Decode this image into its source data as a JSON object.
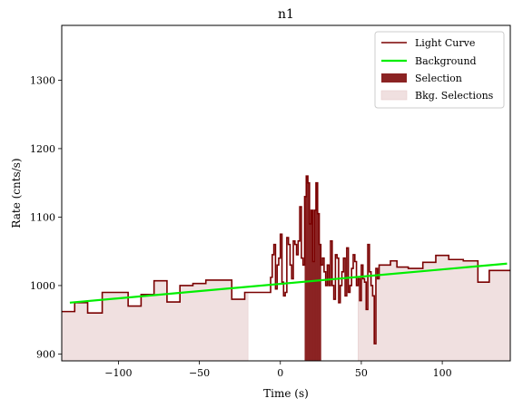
{
  "chart_data": {
    "type": "line",
    "title": "n1",
    "xlabel": "Time (s)",
    "ylabel": "Rate (cnts/s)",
    "xlim": [
      -135,
      142
    ],
    "ylim": [
      890,
      1380
    ],
    "xticks": [
      -100,
      -50,
      0,
      50,
      100
    ],
    "yticks": [
      900,
      1000,
      1100,
      1200,
      1300
    ],
    "xtick_labels": [
      "−100",
      "−50",
      "0",
      "50",
      "100"
    ],
    "ytick_labels": [
      "900",
      "1000",
      "1100",
      "1200",
      "1300"
    ],
    "grid": false,
    "legend_position": "top-right",
    "legend": [
      "Light Curve",
      "Background",
      "Selection",
      "Bkg. Selections"
    ],
    "colors": {
      "light_curve": "#7a0000",
      "background": "#00ee00",
      "selection": "#8b2323",
      "bkg_selection": "#f0e0e0"
    },
    "background_fit": {
      "x": [
        -130,
        140
      ],
      "y": [
        975,
        1032
      ]
    },
    "selection_range": [
      15,
      25
    ],
    "bkg_selection_ranges": [
      [
        -135,
        -20
      ],
      [
        48,
        142
      ]
    ],
    "light_curve": {
      "x": [
        -135,
        -127,
        -127,
        -119,
        -119,
        -110,
        -110,
        -94,
        -94,
        -86,
        -86,
        -78,
        -78,
        -70,
        -70,
        -62,
        -62,
        -54,
        -54,
        -46,
        -46,
        -38,
        -38,
        -30,
        -30,
        -26,
        -26,
        -22,
        -22,
        -18,
        -18,
        -14,
        -14,
        -10,
        -10,
        -6,
        -6,
        -5,
        -5,
        -4,
        -4,
        -3,
        -3,
        -2,
        -2,
        -1,
        -1,
        0,
        0,
        1,
        1,
        2,
        2,
        3,
        3,
        4,
        4,
        5,
        5,
        6,
        6,
        7,
        7,
        8,
        8,
        9,
        9,
        10,
        10,
        11,
        11,
        12,
        12,
        13,
        13,
        14,
        14,
        15,
        15,
        16,
        16,
        17,
        17,
        18,
        18,
        19,
        19,
        20,
        20,
        21,
        21,
        22,
        22,
        23,
        23,
        24,
        24,
        25,
        25,
        26,
        26,
        27,
        27,
        28,
        28,
        29,
        29,
        30,
        30,
        31,
        31,
        32,
        32,
        33,
        33,
        34,
        34,
        35,
        35,
        36,
        36,
        37,
        37,
        38,
        38,
        39,
        39,
        40,
        40,
        41,
        41,
        42,
        42,
        43,
        43,
        44,
        44,
        45,
        45,
        46,
        46,
        47,
        47,
        48,
        48,
        49,
        49,
        50,
        50,
        51,
        51,
        52,
        52,
        53,
        53,
        54,
        54,
        55,
        55,
        56,
        56,
        57,
        57,
        58,
        58,
        59,
        59,
        60,
        60,
        61,
        61,
        62,
        62,
        63,
        63,
        64,
        64,
        65,
        65,
        66,
        66,
        67,
        67,
        68,
        68,
        69,
        69,
        70,
        70,
        71,
        71,
        72,
        72,
        73,
        73,
        74,
        74,
        75,
        75,
        76,
        76,
        77,
        77,
        78,
        78,
        79,
        79,
        80,
        80,
        81,
        81,
        82,
        82,
        83,
        83,
        84,
        84,
        85,
        85,
        86,
        86,
        87,
        87,
        88,
        88,
        89,
        89,
        90,
        90,
        91,
        91,
        92,
        92,
        93,
        93,
        94,
        94,
        95,
        95,
        96,
        96,
        97,
        97,
        98,
        98,
        99,
        99,
        100,
        100,
        101,
        101,
        102,
        102,
        103,
        103,
        104,
        104,
        105,
        105,
        106,
        106,
        107,
        107,
        108,
        108,
        109,
        109,
        110,
        110,
        111,
        111,
        112,
        112,
        113,
        113,
        114,
        114,
        115,
        115,
        116,
        116,
        117,
        117,
        118,
        118,
        119,
        119,
        120,
        120,
        121,
        121,
        122,
        122,
        123,
        123,
        124,
        124,
        125,
        125,
        126,
        126,
        127,
        127,
        128,
        128,
        129,
        129,
        130,
        130,
        131,
        131,
        132,
        132,
        133,
        133,
        134,
        134,
        135,
        135,
        136,
        136,
        137,
        137,
        138,
        138,
        139,
        139,
        140,
        140,
        141,
        141,
        142
      ],
      "y": []
    },
    "light_curve_steps": [
      [
        -135,
        -127,
        962
      ],
      [
        -127,
        -119,
        975
      ],
      [
        -119,
        -110,
        960
      ],
      [
        -110,
        -94,
        990
      ],
      [
        -94,
        -86,
        970
      ],
      [
        -86,
        -78,
        987
      ],
      [
        -78,
        -70,
        1007
      ],
      [
        -70,
        -62,
        976
      ],
      [
        -62,
        -54,
        1000
      ],
      [
        -54,
        -46,
        1003
      ],
      [
        -46,
        -38,
        1008
      ],
      [
        -38,
        -30,
        1008
      ],
      [
        -30,
        -22,
        980
      ],
      [
        -22,
        -14,
        990
      ],
      [
        -14,
        -6,
        990
      ],
      [
        -6,
        -5,
        1012
      ],
      [
        -5,
        -4,
        1045
      ],
      [
        -4,
        -3,
        1060
      ],
      [
        -3,
        -2,
        995
      ],
      [
        -2,
        -1,
        1030
      ],
      [
        -1,
        0,
        1040
      ],
      [
        0,
        1,
        1075
      ],
      [
        1,
        2,
        1005
      ],
      [
        2,
        3,
        985
      ],
      [
        3,
        4,
        990
      ],
      [
        4,
        5,
        1070
      ],
      [
        5,
        6,
        1060
      ],
      [
        6,
        7,
        1030
      ],
      [
        7,
        8,
        1010
      ],
      [
        8,
        9,
        1065
      ],
      [
        9,
        10,
        1060
      ],
      [
        10,
        11,
        1045
      ],
      [
        11,
        12,
        1065
      ],
      [
        12,
        13,
        1115
      ],
      [
        13,
        14,
        1040
      ],
      [
        14,
        15,
        1030
      ],
      [
        15,
        16,
        1130
      ],
      [
        16,
        17,
        1160
      ],
      [
        17,
        18,
        1150
      ],
      [
        18,
        19,
        1090
      ],
      [
        19,
        20,
        1110
      ],
      [
        20,
        21,
        1035
      ],
      [
        21,
        22,
        1110
      ],
      [
        22,
        23,
        1150
      ],
      [
        23,
        24,
        1105
      ],
      [
        24,
        25,
        1060
      ],
      [
        25,
        26,
        1030
      ],
      [
        26,
        27,
        1040
      ],
      [
        27,
        28,
        1020
      ],
      [
        28,
        29,
        1000
      ],
      [
        29,
        30,
        1030
      ],
      [
        30,
        31,
        1000
      ],
      [
        31,
        32,
        1065
      ],
      [
        32,
        33,
        1000
      ],
      [
        33,
        34,
        980
      ],
      [
        34,
        35,
        1045
      ],
      [
        35,
        36,
        1040
      ],
      [
        36,
        37,
        975
      ],
      [
        37,
        38,
        1000
      ],
      [
        38,
        39,
        1020
      ],
      [
        39,
        40,
        1040
      ],
      [
        40,
        41,
        985
      ],
      [
        41,
        42,
        1055
      ],
      [
        42,
        43,
        990
      ],
      [
        43,
        44,
        1000
      ],
      [
        44,
        45,
        1025
      ],
      [
        45,
        46,
        1045
      ],
      [
        46,
        47,
        1035
      ],
      [
        47,
        48,
        1000
      ],
      [
        48,
        49,
        1010
      ],
      [
        49,
        50,
        978
      ],
      [
        50,
        51,
        1030
      ],
      [
        51,
        52,
        1010
      ],
      [
        52,
        53,
        1005
      ],
      [
        53,
        54,
        965
      ],
      [
        54,
        55,
        1060
      ],
      [
        55,
        56,
        1020
      ],
      [
        56,
        57,
        1000
      ],
      [
        57,
        58,
        985
      ],
      [
        58,
        59,
        915
      ],
      [
        59,
        60,
        1025
      ],
      [
        60,
        61,
        1010
      ],
      [
        61,
        68,
        1030
      ],
      [
        68,
        72,
        1036
      ],
      [
        72,
        79,
        1027
      ],
      [
        79,
        88,
        1025
      ],
      [
        88,
        96,
        1034
      ],
      [
        96,
        104,
        1044
      ],
      [
        104,
        113,
        1038
      ],
      [
        113,
        122,
        1036
      ],
      [
        122,
        129,
        1005
      ],
      [
        129,
        142,
        1022
      ]
    ]
  }
}
